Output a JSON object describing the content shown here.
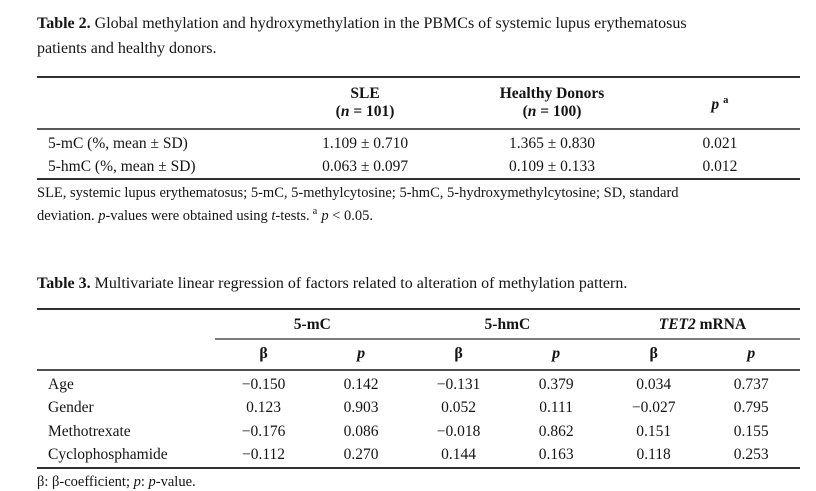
{
  "colors": {
    "text": "#141414",
    "rule_heavy": "#303030",
    "rule_mid": "#5a5a5a",
    "rule_light": "#7d7d7d"
  },
  "table2": {
    "caption": {
      "label": "Table 2.",
      "line1": "Global methylation and hydroxymethylation in the PBMCs of systemic lupus erythematosus",
      "line2": "patients and healthy donors."
    },
    "header": {
      "sle_name": "SLE",
      "sle_n_pre": "(",
      "sle_n_var": "n",
      "sle_n_post": " = 101)",
      "hd_name": "Healthy Donors",
      "hd_n_pre": "(",
      "hd_n_var": "n",
      "hd_n_post": " = 100)",
      "p_var": "p",
      "p_sup": "a"
    },
    "rows": [
      {
        "label": "5-mC (%, mean ± SD)",
        "values": [
          "1.109 ± 0.710",
          "1.365 ± 0.830",
          "0.021"
        ]
      },
      {
        "label": "5-hmC (%, mean ± SD)",
        "values": [
          "0.063 ± 0.097",
          "0.109 ± 0.133",
          "0.012"
        ]
      }
    ],
    "footnote": {
      "line1": "SLE, systemic lupus erythematosus; 5-mC, 5-methylcytosine; 5-hmC, 5-hydroxymethylcytosine; SD, standard",
      "line2_pre": "deviation. ",
      "p_italic1": "p",
      "line2_mid": "-values were obtained using ",
      "t_italic": "t",
      "line2_end": "-tests.",
      "sup_a": "a",
      "p_italic2": "p",
      "tail": " < 0.05."
    }
  },
  "table3": {
    "caption": {
      "label": "Table 3.",
      "text": "Multivariate linear regression of factors related to alteration of methylation pattern."
    },
    "group1": "5-mC",
    "group2": "5-hmC",
    "group3_italic": "TET2",
    "group3_rest": " mRNA",
    "subheaders": {
      "beta": "β",
      "p": "p"
    },
    "rows": [
      {
        "label": "Age",
        "values": [
          "−0.150",
          "0.142",
          "−0.131",
          "0.379",
          "0.034",
          "0.737"
        ]
      },
      {
        "label": "Gender",
        "values": [
          "0.123",
          "0.903",
          "0.052",
          "0.111",
          "−0.027",
          "0.795"
        ]
      },
      {
        "label": "Methotrexate",
        "values": [
          "−0.176",
          "0.086",
          "−0.018",
          "0.862",
          "0.151",
          "0.155"
        ]
      },
      {
        "label": "Cyclophosphamide",
        "values": [
          "−0.112",
          "0.270",
          "0.144",
          "0.163",
          "0.118",
          "0.253"
        ]
      }
    ],
    "footnote": {
      "seg1": "β: β-coefficient; ",
      "p1": "p",
      "seg2": ": ",
      "p2": "p",
      "seg3": "-value."
    }
  }
}
